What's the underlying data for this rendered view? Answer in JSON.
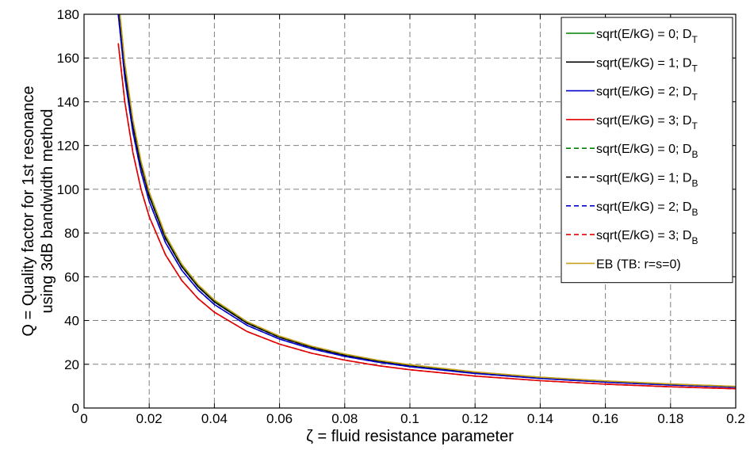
{
  "chart_data": {
    "type": "line",
    "xlabel": "ζ = fluid resistance parameter",
    "ylabel_lines": [
      "Q = Quality factor for 1st resonance",
      "using 3dB bandwidth method"
    ],
    "xlim": [
      0,
      0.2
    ],
    "ylim": [
      0,
      180
    ],
    "xticks": [
      0,
      0.02,
      0.04,
      0.06,
      0.08,
      0.1,
      0.12,
      0.14,
      0.16,
      0.18,
      0.2
    ],
    "xtick_labels": [
      "0",
      "0.02",
      "0.04",
      "0.06",
      "0.08",
      "0.1",
      "0.12",
      "0.14",
      "0.16",
      "0.18",
      "0.2"
    ],
    "yticks": [
      0,
      20,
      40,
      60,
      80,
      100,
      120,
      140,
      160,
      180
    ],
    "ytick_labels": [
      "0",
      "20",
      "40",
      "60",
      "80",
      "100",
      "120",
      "140",
      "160",
      "180"
    ],
    "grid": true,
    "legend_position": "top-right",
    "x": [
      0.0105,
      0.0125,
      0.015,
      0.0175,
      0.02,
      0.025,
      0.03,
      0.035,
      0.04,
      0.05,
      0.06,
      0.07,
      0.08,
      0.09,
      0.1,
      0.12,
      0.14,
      0.16,
      0.18,
      0.2
    ],
    "series": [
      {
        "name": "sqrt(E/kG) = 0; D",
        "sub": "T",
        "color": "#008000",
        "dash": "solid",
        "values": [
          187.1,
          157.1,
          130.9,
          112.2,
          98.2,
          78.5,
          65.4,
          56.1,
          49.1,
          39.3,
          32.7,
          28.1,
          24.5,
          21.8,
          19.6,
          16.4,
          14.0,
          12.3,
          10.9,
          9.8
        ]
      },
      {
        "name": "sqrt(E/kG) = 1; D",
        "sub": "T",
        "color": "#000000",
        "dash": "solid",
        "values": [
          184.6,
          155.1,
          129.2,
          110.8,
          96.9,
          77.5,
          64.6,
          55.4,
          48.5,
          38.8,
          32.3,
          27.7,
          24.2,
          21.5,
          19.4,
          16.2,
          13.8,
          12.1,
          10.8,
          9.7
        ]
      },
      {
        "name": "sqrt(E/kG) = 2; D",
        "sub": "T",
        "color": "#0000cc",
        "dash": "solid",
        "values": [
          180.0,
          151.2,
          126.0,
          108.0,
          94.5,
          75.6,
          63.0,
          54.0,
          47.3,
          37.8,
          31.5,
          27.0,
          23.6,
          21.0,
          18.9,
          15.8,
          13.5,
          11.8,
          10.5,
          9.5
        ]
      },
      {
        "name": "sqrt(E/kG) = 3; D",
        "sub": "T",
        "color": "#e00000",
        "dash": "solid",
        "values": [
          166.7,
          140.0,
          116.7,
          100.0,
          87.5,
          70.0,
          58.3,
          50.0,
          43.8,
          35.0,
          29.2,
          25.0,
          21.9,
          19.4,
          17.5,
          14.6,
          12.5,
          10.9,
          9.7,
          8.8
        ]
      },
      {
        "name": "sqrt(E/kG) = 0; D",
        "sub": "B",
        "color": "#008000",
        "dash": "dashed",
        "values": [
          187.1,
          157.1,
          130.9,
          112.2,
          98.2,
          78.5,
          65.4,
          56.1,
          49.1,
          39.3,
          32.7,
          28.1,
          24.5,
          21.8,
          19.6,
          16.4,
          14.0,
          12.3,
          10.9,
          9.8
        ]
      },
      {
        "name": "sqrt(E/kG) = 1; D",
        "sub": "B",
        "color": "#000000",
        "dash": "dashed",
        "values": [
          184.6,
          155.1,
          129.2,
          110.8,
          96.9,
          77.5,
          64.6,
          55.4,
          48.5,
          38.8,
          32.3,
          27.7,
          24.2,
          21.5,
          19.4,
          16.2,
          13.8,
          12.1,
          10.8,
          9.7
        ]
      },
      {
        "name": "sqrt(E/kG) = 2; D",
        "sub": "B",
        "color": "#0000cc",
        "dash": "dashed",
        "values": [
          180.0,
          151.2,
          126.0,
          108.0,
          94.5,
          75.6,
          63.0,
          54.0,
          47.3,
          37.8,
          31.5,
          27.0,
          23.6,
          21.0,
          18.9,
          15.8,
          13.5,
          11.8,
          10.5,
          9.5
        ]
      },
      {
        "name": "sqrt(E/kG) = 3; D",
        "sub": "B",
        "color": "#e00000",
        "dash": "dashed",
        "values": [
          166.7,
          140.0,
          116.7,
          100.0,
          87.5,
          70.0,
          58.3,
          50.0,
          43.8,
          35.0,
          29.2,
          25.0,
          21.9,
          19.4,
          17.5,
          14.6,
          12.5,
          10.9,
          9.7,
          8.8
        ]
      },
      {
        "name": "EB (TB: r=s=0)",
        "sub": "",
        "color": "#c8a020",
        "dash": "solid",
        "values": [
          188.0,
          158.0,
          131.7,
          112.9,
          98.8,
          79.0,
          65.8,
          56.4,
          49.4,
          39.5,
          32.9,
          28.2,
          24.7,
          21.9,
          19.8,
          16.5,
          14.1,
          12.4,
          11.0,
          9.9
        ]
      }
    ]
  }
}
